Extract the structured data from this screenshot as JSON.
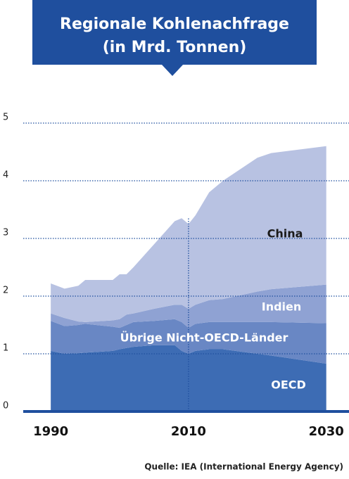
{
  "chart_data": {
    "type": "stacked_area",
    "title": [
      "Regionale Kohlenachfrage",
      "(in Mrd. Tonnen)"
    ],
    "x": [
      1990,
      1992,
      1994,
      1995,
      1999,
      2000,
      2001,
      2002,
      2005,
      2008,
      2009,
      2010,
      2011,
      2013,
      2015,
      2020,
      2022,
      2030
    ],
    "series": [
      {
        "name": "OECD",
        "color": "#3d6cb4",
        "values": [
          1.05,
          1.0,
          1.01,
          1.02,
          1.05,
          1.08,
          1.1,
          1.12,
          1.15,
          1.15,
          1.05,
          1.0,
          1.05,
          1.08,
          1.08,
          1.0,
          0.97,
          0.83
        ]
      },
      {
        "name": "Übrige Nicht-OECD-Länder",
        "color": "#6987c4",
        "values": [
          0.52,
          0.48,
          0.49,
          0.5,
          0.42,
          0.37,
          0.4,
          0.43,
          0.42,
          0.45,
          0.5,
          0.45,
          0.47,
          0.47,
          0.47,
          0.55,
          0.58,
          0.7
        ]
      },
      {
        "name": "Indien",
        "color": "#8fa2d3",
        "values": [
          0.13,
          0.14,
          0.06,
          0.03,
          0.11,
          0.15,
          0.18,
          0.15,
          0.21,
          0.25,
          0.3,
          0.33,
          0.33,
          0.38,
          0.4,
          0.53,
          0.57,
          0.67
        ]
      },
      {
        "name": "China",
        "color": "#b8c2e2",
        "values": [
          0.52,
          0.51,
          0.62,
          0.73,
          0.7,
          0.78,
          0.7,
          0.8,
          1.12,
          1.45,
          1.5,
          1.47,
          1.55,
          1.87,
          2.05,
          2.32,
          2.36,
          2.4
        ]
      }
    ],
    "xlim": [
      1986,
      2033.3
    ],
    "xticks": [
      1990,
      2010,
      2030
    ],
    "ylim": [
      0,
      5
    ],
    "yticks": [
      0,
      1,
      2,
      3,
      4,
      5
    ],
    "grid": true,
    "reference_line_x": 2010,
    "source": "Quelle: IEA (International Energy Agency)"
  }
}
